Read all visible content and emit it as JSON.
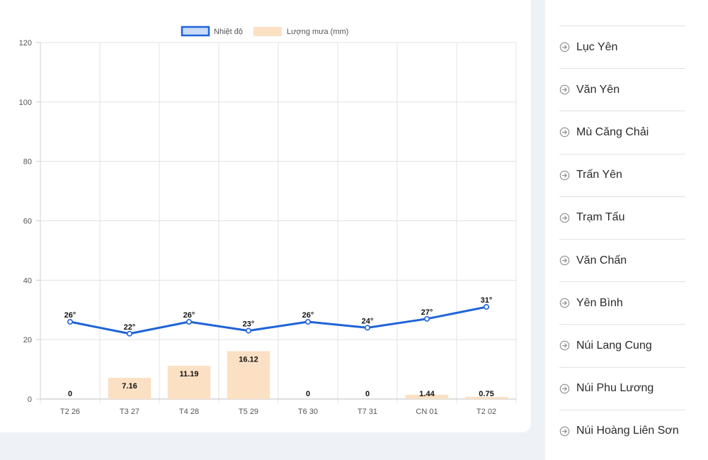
{
  "chart_data": {
    "type": "bar",
    "categories": [
      "T2 26",
      "T3 27",
      "T4 28",
      "T5 29",
      "T6 30",
      "T7 31",
      "CN 01",
      "T2 02"
    ],
    "series": [
      {
        "name": "Nhiệt độ",
        "kind": "line",
        "values": [
          26,
          22,
          26,
          23,
          26,
          24,
          27,
          31
        ],
        "labels": [
          "26°",
          "22°",
          "26°",
          "23°",
          "26°",
          "24°",
          "27°",
          "31°"
        ],
        "color": "#1f63d8",
        "fill": "#c9dbf7"
      },
      {
        "name": "Lượng mưa (mm)",
        "kind": "bar",
        "values": [
          0,
          7.16,
          11.19,
          16.12,
          0,
          0,
          1.44,
          0.75
        ],
        "labels": [
          "0",
          "7.16",
          "11.19",
          "16.12",
          "0",
          "0",
          "1.44",
          "0.75"
        ],
        "color": "#fbe0c4"
      }
    ],
    "yticks": [
      "0",
      "20",
      "40",
      "60",
      "80",
      "100",
      "120"
    ],
    "ylim": [
      0,
      120
    ],
    "grid": true,
    "legend": "top-center"
  },
  "locations": [
    {
      "label": "Lục Yên",
      "icon": "arrow-circle-right-icon"
    },
    {
      "label": "Văn Yên",
      "icon": "arrow-circle-right-icon"
    },
    {
      "label": "Mù Căng Chải",
      "icon": "arrow-circle-right-icon"
    },
    {
      "label": "Trấn Yên",
      "icon": "arrow-circle-right-icon"
    },
    {
      "label": "Trạm Tấu",
      "icon": "arrow-circle-right-icon"
    },
    {
      "label": "Văn Chấn",
      "icon": "arrow-circle-right-icon"
    },
    {
      "label": "Yên Bình",
      "icon": "arrow-circle-right-icon"
    },
    {
      "label": "Núi Lang Cung",
      "icon": "arrow-circle-right-icon"
    },
    {
      "label": "Núi Phu Lương",
      "icon": "arrow-circle-right-icon"
    },
    {
      "label": "Núi Hoàng Liên Sơn",
      "icon": "arrow-circle-right-icon"
    }
  ]
}
